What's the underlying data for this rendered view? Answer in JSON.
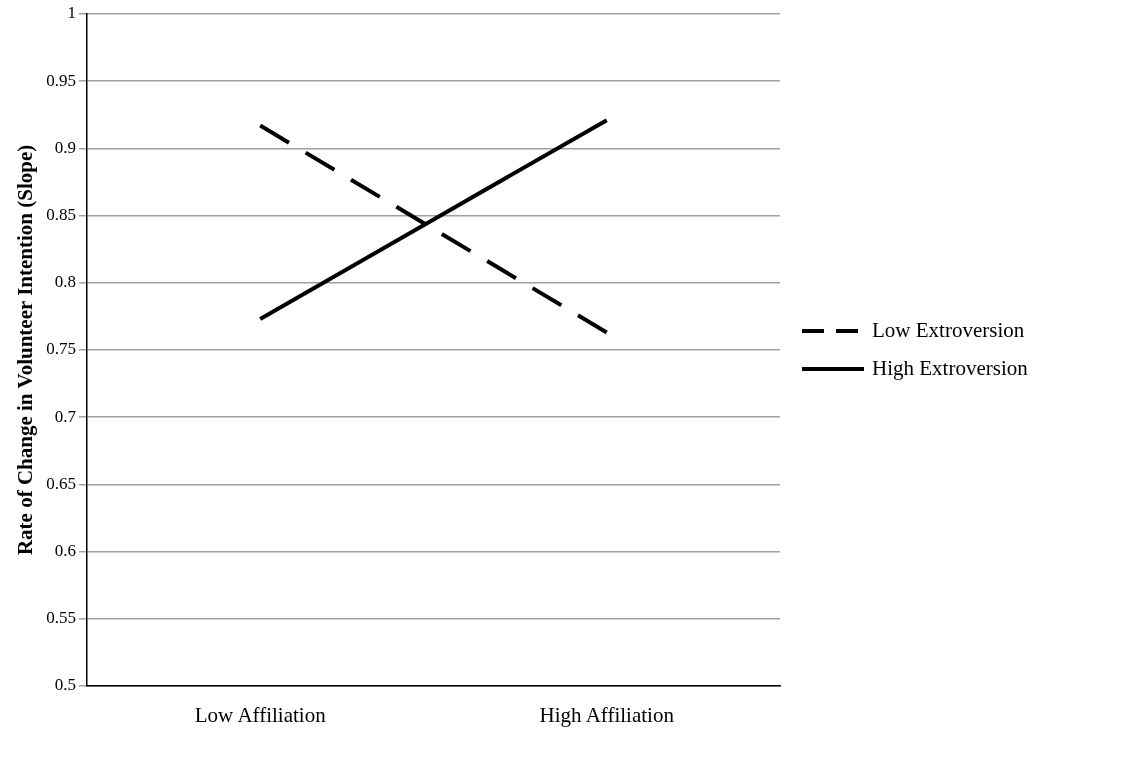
{
  "chart_data": {
    "type": "line",
    "ylabel": "Rate of Change in Volunteer Intention (Slope)",
    "categories": [
      "Low Affiliation",
      "High Affiliation"
    ],
    "series": [
      {
        "name": "Low Extroversion",
        "color": "#000000",
        "values": [
          0.917,
          0.763
        ],
        "line_style": "dashed"
      },
      {
        "name": "High Extroversion",
        "color": "#000000",
        "values": [
          0.773,
          0.921
        ],
        "line_style": "solid"
      }
    ],
    "ylim": [
      0.5,
      1
    ],
    "yticks": [
      0.5,
      0.55,
      0.6,
      0.65,
      0.7,
      0.75,
      0.8,
      0.85,
      0.9,
      0.95,
      1
    ],
    "grid": "y",
    "legend": "right",
    "marker": "none"
  }
}
